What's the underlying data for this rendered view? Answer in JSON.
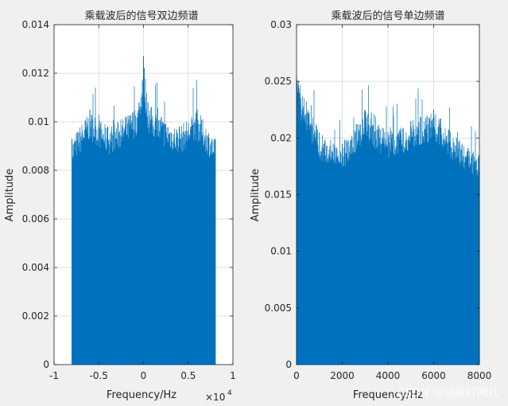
{
  "watermark": "CSDN @迎风打盹儿",
  "chart_data": [
    {
      "type": "line",
      "title": "乘载波后的信号双边频谱",
      "xlabel": "Frequency/Hz",
      "ylabel": "Amplitude",
      "x_exponent": "×10",
      "x_exponent_power": "4",
      "xlim": [
        -10000,
        10000
      ],
      "ylim": [
        0,
        0.014
      ],
      "grid": true,
      "x_ticks": [
        -10000,
        -5000,
        0,
        5000,
        10000
      ],
      "x_tick_labels": [
        "-1",
        "-0.5",
        "0",
        "0.5",
        "1"
      ],
      "y_ticks": [
        0,
        0.002,
        0.004,
        0.006,
        0.008,
        0.01,
        0.012,
        0.014
      ],
      "y_tick_labels": [
        "0",
        "0.002",
        "0.004",
        "0.006",
        "0.008",
        "0.01",
        "0.012",
        "0.014"
      ],
      "color": "#0072bd",
      "series": [
        {
          "x": [
            -8000,
            -6000,
            -4000,
            -2000,
            -500,
            0,
            500,
            2000,
            4000,
            6000,
            8000
          ],
          "y": [
            0.0093,
            0.0105,
            0.0098,
            0.0102,
            0.0108,
            0.0127,
            0.0108,
            0.0102,
            0.0098,
            0.0105,
            0.0093
          ]
        }
      ]
    },
    {
      "type": "line",
      "title": "乘载波后的信号单边频谱",
      "xlabel": "Frequency/Hz",
      "ylabel": "Amplitude",
      "xlim": [
        0,
        8000
      ],
      "ylim": [
        0,
        0.03
      ],
      "grid": true,
      "x_ticks": [
        0,
        2000,
        4000,
        6000,
        8000
      ],
      "x_tick_labels": [
        "0",
        "2000",
        "4000",
        "6000",
        "8000"
      ],
      "y_ticks": [
        0,
        0.005,
        0.01,
        0.015,
        0.02,
        0.025,
        0.03
      ],
      "y_tick_labels": [
        "0",
        "0.005",
        "0.01",
        "0.015",
        "0.02",
        "0.025",
        "0.03"
      ],
      "color": "#0072bd",
      "series": [
        {
          "x": [
            0,
            1000,
            2000,
            3000,
            4000,
            5000,
            6000,
            7000,
            8000
          ],
          "y": [
            0.0255,
            0.0205,
            0.0195,
            0.0225,
            0.0205,
            0.0215,
            0.0225,
            0.02,
            0.0185
          ]
        }
      ]
    }
  ]
}
